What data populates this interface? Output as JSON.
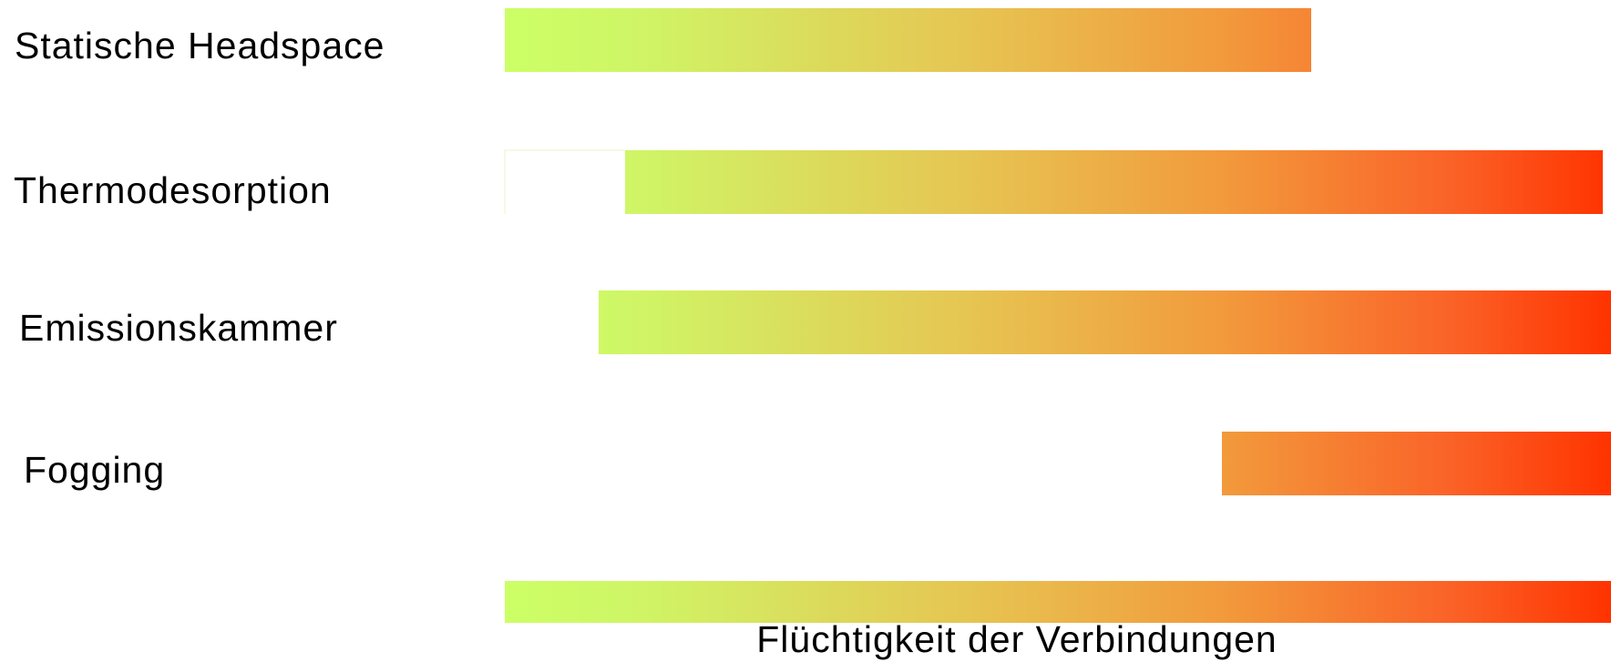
{
  "methods": [
    {
      "label": "Statische Headspace"
    },
    {
      "label": "Thermodesorption"
    },
    {
      "label": "Emissionskammer"
    },
    {
      "label": "Fogging"
    }
  ],
  "axis_label": "Flüchtigkeit der Verbindungen"
}
